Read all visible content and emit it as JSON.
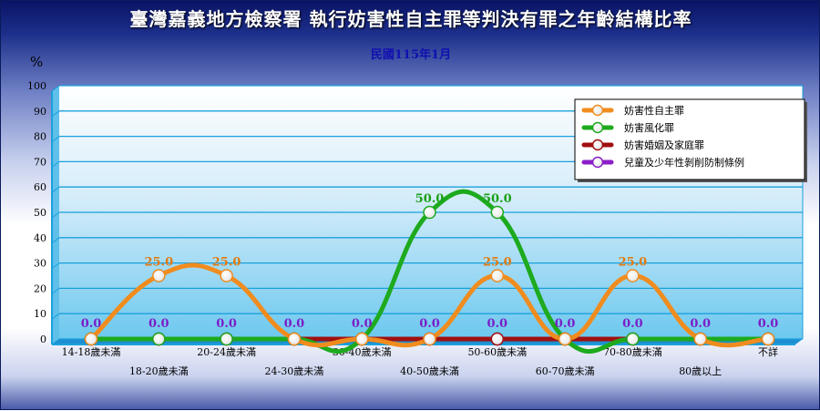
{
  "chart_data": {
    "type": "line",
    "title": "臺灣嘉義地方檢察署  執行妨害性自主罪等判決有罪之年齡結構比率",
    "subtitle": "民國115年1月",
    "ylabel": "%",
    "ylim": [
      0,
      100
    ],
    "yticks": [
      0,
      10,
      20,
      30,
      40,
      50,
      60,
      70,
      80,
      90,
      100
    ],
    "grid": true,
    "legend_position": "top-right",
    "categories": [
      "14-18歲未滿",
      "18-20歲未滿",
      "20-24歲未滿",
      "24-30歲未滿",
      "30-40歲未滿",
      "40-50歲未滿",
      "50-60歲未滿",
      "60-70歲未滿",
      "70-80歲未滿",
      "80歲以上",
      "不詳"
    ],
    "series": [
      {
        "name": "妨害性自主罪",
        "color": "#f08c1e",
        "values": [
          0,
          25,
          25,
          0,
          0,
          0,
          25,
          0,
          25,
          0,
          0
        ]
      },
      {
        "name": "妨害風化罪",
        "color": "#1eaa1e",
        "values": [
          0,
          0,
          0,
          0,
          0,
          50,
          50,
          0,
          0,
          0,
          0
        ]
      },
      {
        "name": "妨害婚姻及家庭罪",
        "color": "#a01010",
        "values": [
          0,
          0,
          0,
          0,
          0,
          0,
          0,
          0,
          0,
          0,
          0
        ]
      },
      {
        "name": "兒童及少年性剝削防制條例",
        "color": "#8a1ec8",
        "values": [
          0,
          0,
          0,
          0,
          0,
          0,
          0,
          0,
          0,
          0,
          0
        ]
      }
    ],
    "data_labels": [
      {
        "category": "14-18歲未滿",
        "text": "0.0",
        "color": "#7a1ec8"
      },
      {
        "category": "18-20歲未滿",
        "text": "25.0",
        "color": "#e07a10"
      },
      {
        "category": "18-20歲未滿",
        "text": "0.0",
        "color": "#7a1ec8"
      },
      {
        "category": "20-24歲未滿",
        "text": "25.0",
        "color": "#e07a10"
      },
      {
        "category": "20-24歲未滿",
        "text": "0.0",
        "color": "#7a1ec8"
      },
      {
        "category": "24-30歲未滿",
        "text": "0.0",
        "color": "#7a1ec8"
      },
      {
        "category": "30-40歲未滿",
        "text": "0.0",
        "color": "#7a1ec8"
      },
      {
        "category": "40-50歲未滿",
        "text": "50.0",
        "color": "#17a017"
      },
      {
        "category": "40-50歲未滿",
        "text": "0.0",
        "color": "#7a1ec8"
      },
      {
        "category": "50-60歲未滿",
        "text": "50.0",
        "color": "#17a017"
      },
      {
        "category": "50-60歲未滿",
        "text": "25.0",
        "color": "#e07a10"
      },
      {
        "category": "50-60歲未滿",
        "text": "0.0",
        "color": "#7a1ec8"
      },
      {
        "category": "60-70歲未滿",
        "text": "0.0",
        "color": "#7a1ec8"
      },
      {
        "category": "70-80歲未滿",
        "text": "25.0",
        "color": "#e07a10"
      },
      {
        "category": "70-80歲未滿",
        "text": "0.0",
        "color": "#7a1ec8"
      },
      {
        "category": "80歲以上",
        "text": "0.0",
        "color": "#7a1ec8"
      },
      {
        "category": "不詳",
        "text": "0.0",
        "color": "#7a1ec8"
      }
    ]
  }
}
